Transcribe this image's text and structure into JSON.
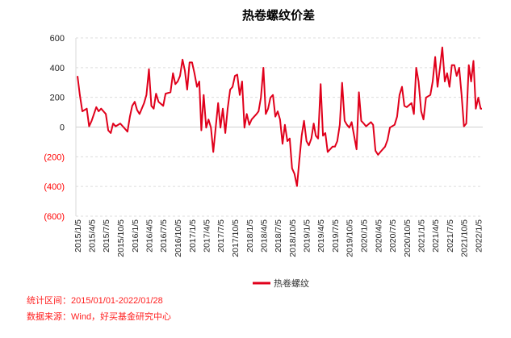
{
  "chart_data": {
    "type": "line",
    "title": "热卷螺纹价差",
    "xlabel": "",
    "ylabel": "",
    "ylim": [
      -600,
      600
    ],
    "yticks": [
      600,
      400,
      200,
      0,
      -200,
      -400,
      -600
    ],
    "ytick_labels": [
      "600",
      "400",
      "200",
      "0",
      "(200)",
      "(400)",
      "(600)"
    ],
    "negative_tick_color": "#ff0000",
    "xlim": [
      "2015-01-05",
      "2022-01-28"
    ],
    "xtick_labels": [
      "2015/1/5",
      "2015/4/5",
      "2015/7/5",
      "2015/10/5",
      "2016/1/5",
      "2016/4/5",
      "2016/7/5",
      "2016/10/5",
      "2017/1/5",
      "2017/4/5",
      "2017/7/5",
      "2017/10/5",
      "2018/1/5",
      "2018/4/5",
      "2018/7/5",
      "2018/10/5",
      "2019/1/5",
      "2019/4/5",
      "2019/7/5",
      "2019/10/5",
      "2020/1/5",
      "2020/4/5",
      "2020/7/5",
      "2020/10/5",
      "2021/1/5",
      "2021/4/5",
      "2021/7/5",
      "2021/10/5",
      "2022/1/5"
    ],
    "grid": "horizontal dashed",
    "legend_position": "bottom",
    "series": [
      {
        "name": "热卷螺纹",
        "color": "#e0001b",
        "points": [
          [
            "2015-01-05",
            343
          ],
          [
            "2015-01-20",
            216
          ],
          [
            "2015-02-05",
            106
          ],
          [
            "2015-03-05",
            124
          ],
          [
            "2015-03-20",
            5
          ],
          [
            "2015-04-05",
            42
          ],
          [
            "2015-04-20",
            88
          ],
          [
            "2015-05-05",
            134
          ],
          [
            "2015-05-20",
            106
          ],
          [
            "2015-06-05",
            124
          ],
          [
            "2015-07-05",
            88
          ],
          [
            "2015-07-20",
            -22
          ],
          [
            "2015-08-05",
            -40
          ],
          [
            "2015-08-20",
            24
          ],
          [
            "2015-09-05",
            5
          ],
          [
            "2015-10-05",
            24
          ],
          [
            "2015-11-05",
            -13
          ],
          [
            "2015-11-20",
            -31
          ],
          [
            "2015-12-05",
            70
          ],
          [
            "2015-12-20",
            143
          ],
          [
            "2016-01-05",
            170
          ],
          [
            "2016-01-20",
            115
          ],
          [
            "2016-02-05",
            88
          ],
          [
            "2016-03-05",
            161
          ],
          [
            "2016-03-20",
            216
          ],
          [
            "2016-04-05",
            390
          ],
          [
            "2016-04-20",
            143
          ],
          [
            "2016-05-05",
            124
          ],
          [
            "2016-05-20",
            225
          ],
          [
            "2016-06-05",
            170
          ],
          [
            "2016-07-05",
            143
          ],
          [
            "2016-07-20",
            225
          ],
          [
            "2016-08-20",
            234
          ],
          [
            "2016-09-05",
            362
          ],
          [
            "2016-09-20",
            289
          ],
          [
            "2016-10-05",
            307
          ],
          [
            "2016-10-20",
            344
          ],
          [
            "2016-11-05",
            454
          ],
          [
            "2016-11-20",
            380
          ],
          [
            "2016-12-05",
            252
          ],
          [
            "2016-12-20",
            435
          ],
          [
            "2017-01-05",
            435
          ],
          [
            "2017-01-20",
            362
          ],
          [
            "2017-02-05",
            271
          ],
          [
            "2017-02-20",
            307
          ],
          [
            "2017-03-05",
            -22
          ],
          [
            "2017-03-20",
            216
          ],
          [
            "2017-04-05",
            -4
          ],
          [
            "2017-04-20",
            51
          ],
          [
            "2017-05-05",
            -4
          ],
          [
            "2017-05-20",
            -168
          ],
          [
            "2017-06-20",
            161
          ],
          [
            "2017-07-05",
            -4
          ],
          [
            "2017-07-20",
            124
          ],
          [
            "2017-08-05",
            -40
          ],
          [
            "2017-08-20",
            124
          ],
          [
            "2017-09-05",
            252
          ],
          [
            "2017-09-20",
            271
          ],
          [
            "2017-10-05",
            344
          ],
          [
            "2017-10-20",
            353
          ],
          [
            "2017-11-05",
            216
          ],
          [
            "2017-11-20",
            307
          ],
          [
            "2017-12-05",
            -4
          ],
          [
            "2017-12-20",
            88
          ],
          [
            "2018-01-05",
            15
          ],
          [
            "2018-01-20",
            51
          ],
          [
            "2018-02-20",
            88
          ],
          [
            "2018-03-05",
            106
          ],
          [
            "2018-03-20",
            198
          ],
          [
            "2018-04-05",
            399
          ],
          [
            "2018-04-20",
            88
          ],
          [
            "2018-05-05",
            124
          ],
          [
            "2018-05-20",
            198
          ],
          [
            "2018-06-05",
            216
          ],
          [
            "2018-06-20",
            70
          ],
          [
            "2018-07-05",
            106
          ],
          [
            "2018-07-20",
            51
          ],
          [
            "2018-08-05",
            -113
          ],
          [
            "2018-08-20",
            15
          ],
          [
            "2018-09-05",
            -95
          ],
          [
            "2018-09-20",
            -77
          ],
          [
            "2018-10-05",
            -278
          ],
          [
            "2018-10-20",
            -315
          ],
          [
            "2018-11-05",
            -397
          ],
          [
            "2018-11-20",
            -223
          ],
          [
            "2018-12-05",
            -58
          ],
          [
            "2018-12-20",
            42
          ],
          [
            "2019-01-05",
            -95
          ],
          [
            "2019-01-20",
            -123
          ],
          [
            "2019-02-05",
            -77
          ],
          [
            "2019-02-20",
            24
          ],
          [
            "2019-03-05",
            -58
          ],
          [
            "2019-03-20",
            -77
          ],
          [
            "2019-04-05",
            289
          ],
          [
            "2019-04-20",
            -58
          ],
          [
            "2019-05-05",
            -40
          ],
          [
            "2019-05-20",
            -168
          ],
          [
            "2019-06-20",
            -132
          ],
          [
            "2019-07-05",
            -132
          ],
          [
            "2019-07-20",
            -95
          ],
          [
            "2019-08-05",
            15
          ],
          [
            "2019-08-20",
            298
          ],
          [
            "2019-09-05",
            42
          ],
          [
            "2019-09-20",
            15
          ],
          [
            "2019-10-05",
            -4
          ],
          [
            "2019-10-20",
            33
          ],
          [
            "2019-11-20",
            -150
          ],
          [
            "2019-12-05",
            234
          ],
          [
            "2019-12-20",
            42
          ],
          [
            "2020-01-05",
            24
          ],
          [
            "2020-01-20",
            5
          ],
          [
            "2020-02-20",
            33
          ],
          [
            "2020-03-05",
            15
          ],
          [
            "2020-03-20",
            -159
          ],
          [
            "2020-04-05",
            -187
          ],
          [
            "2020-04-20",
            -168
          ],
          [
            "2020-05-20",
            -132
          ],
          [
            "2020-06-05",
            -86
          ],
          [
            "2020-06-20",
            -4
          ],
          [
            "2020-07-20",
            15
          ],
          [
            "2020-08-05",
            70
          ],
          [
            "2020-08-20",
            216
          ],
          [
            "2020-09-05",
            271
          ],
          [
            "2020-09-20",
            143
          ],
          [
            "2020-10-05",
            134
          ],
          [
            "2020-11-05",
            161
          ],
          [
            "2020-11-20",
            88
          ],
          [
            "2020-12-05",
            399
          ],
          [
            "2020-12-20",
            307
          ],
          [
            "2021-01-05",
            106
          ],
          [
            "2021-01-20",
            51
          ],
          [
            "2021-02-05",
            198
          ],
          [
            "2021-03-05",
            216
          ],
          [
            "2021-03-20",
            307
          ],
          [
            "2021-04-05",
            472
          ],
          [
            "2021-04-20",
            271
          ],
          [
            "2021-05-05",
            399
          ],
          [
            "2021-05-20",
            536
          ],
          [
            "2021-06-05",
            307
          ],
          [
            "2021-06-20",
            362
          ],
          [
            "2021-07-05",
            271
          ],
          [
            "2021-07-20",
            417
          ],
          [
            "2021-08-05",
            417
          ],
          [
            "2021-08-20",
            344
          ],
          [
            "2021-09-05",
            399
          ],
          [
            "2021-09-20",
            216
          ],
          [
            "2021-10-05",
            5
          ],
          [
            "2021-10-20",
            24
          ],
          [
            "2021-11-05",
            417
          ],
          [
            "2021-11-20",
            307
          ],
          [
            "2021-12-05",
            445
          ],
          [
            "2021-12-20",
            124
          ],
          [
            "2022-01-05",
            198
          ],
          [
            "2022-01-20",
            124
          ],
          [
            "2022-01-28",
            124
          ]
        ]
      }
    ]
  },
  "footer": {
    "period_label": "统计区间：2015/01/01-2022/01/28",
    "source_label": "数据来源：Wind，好买基金研究中心"
  }
}
